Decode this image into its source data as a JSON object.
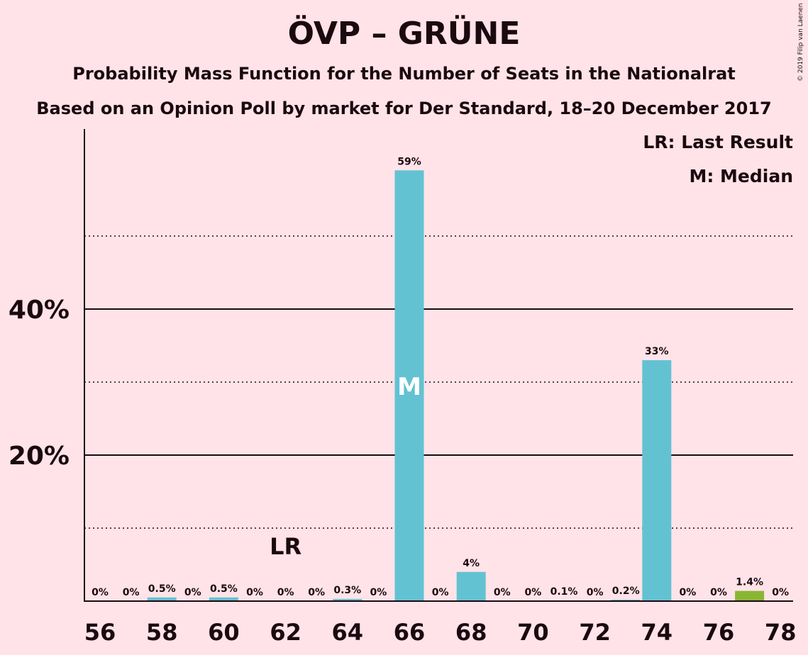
{
  "copyright": "© 2019 Filip van Laenen",
  "chart_data": {
    "type": "bar",
    "title": "ÖVP – GRÜNE",
    "subtitle": "Probability Mass Function for the Number of Seats in the Nationalrat",
    "subtitle2": "Based on an Opinion Poll by market for Der Standard, 18–20 December 2017",
    "legend": [
      "LR: Last Result",
      "M: Median"
    ],
    "legend_position": "top-right",
    "x": [
      56,
      57,
      58,
      59,
      60,
      61,
      62,
      63,
      64,
      65,
      66,
      67,
      68,
      69,
      70,
      71,
      72,
      73,
      74,
      75,
      76,
      77,
      78
    ],
    "values": [
      0,
      0,
      0.5,
      0,
      0.5,
      0,
      0,
      0,
      0.3,
      0,
      59,
      0,
      4,
      0,
      0,
      0.1,
      0,
      0.2,
      33,
      0,
      0,
      1.4,
      0
    ],
    "labels": [
      "0%",
      "0%",
      "0.5%",
      "0%",
      "0.5%",
      "0%",
      "0%",
      "0%",
      "0.3%",
      "0%",
      "59%",
      "0%",
      "4%",
      "0%",
      "0%",
      "0.1%",
      "0%",
      "0.2%",
      "33%",
      "0%",
      "0%",
      "1.4%",
      "0%"
    ],
    "xticks": [
      56,
      58,
      60,
      62,
      64,
      66,
      68,
      70,
      72,
      74,
      76,
      78
    ],
    "yticks": [
      {
        "value": 20,
        "label": "20%"
      },
      {
        "value": 40,
        "label": "40%"
      }
    ],
    "gridlines_solid": [
      20,
      40
    ],
    "gridlines_dotted": [
      10,
      30,
      50
    ],
    "ylim": [
      0,
      64
    ],
    "last_result_seat": 62,
    "last_result_label": "LR",
    "median_seat": 66,
    "median_label": "M",
    "majority_seat": 77,
    "colors": {
      "bar": "#63c2d2",
      "majority_bar": "#8ab635",
      "background": "#ffe3e8",
      "text": "#1a0a10"
    }
  }
}
